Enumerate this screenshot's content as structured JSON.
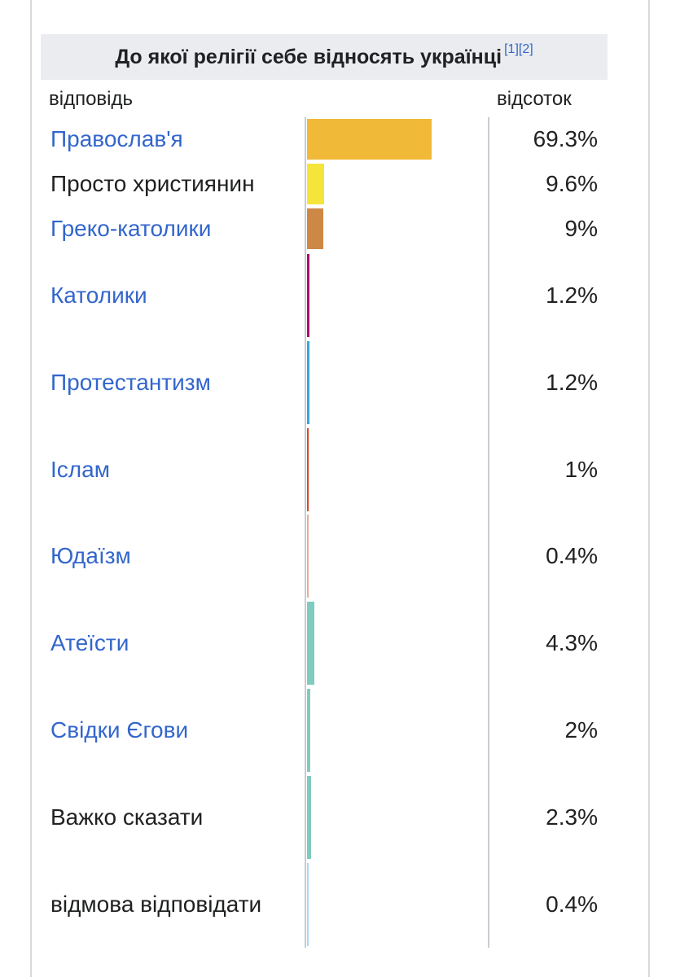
{
  "title": "До якої релігії себе відносять українці",
  "refs": "[1][2]",
  "columns": {
    "answer": "відповідь",
    "percent": "відсоток"
  },
  "chart_data": {
    "type": "bar",
    "title": "До якої релігії себе відносять українці",
    "orientation": "horizontal",
    "categories": [
      "Православ'я",
      "Просто християнин",
      "Греко-католики",
      "Католики",
      "Протестантизм",
      "Іслам",
      "Юдаїзм",
      "Атеїсти",
      "Свідки Єгови",
      "Важко сказати",
      "відмова відповідати"
    ],
    "values": [
      69.3,
      9.6,
      9,
      1.2,
      1.2,
      1,
      0.4,
      4.3,
      2,
      2.3,
      0.4
    ],
    "value_labels": [
      "69.3%",
      "9.6%",
      "9%",
      "1.2%",
      "1.2%",
      "1%",
      "0.4%",
      "4.3%",
      "2%",
      "2.3%",
      "0.4%"
    ],
    "colors": [
      "#f0b937",
      "#f5e43a",
      "#cd8846",
      "#a3106f",
      "#3aa3e0",
      "#d9452b",
      "#ecab94",
      "#80cbc0",
      "#80cbc0",
      "#80cbc0",
      "#a9d7f5"
    ],
    "is_link": [
      true,
      false,
      true,
      true,
      true,
      true,
      true,
      true,
      true,
      false,
      false
    ],
    "xlim": [
      0,
      100
    ]
  }
}
